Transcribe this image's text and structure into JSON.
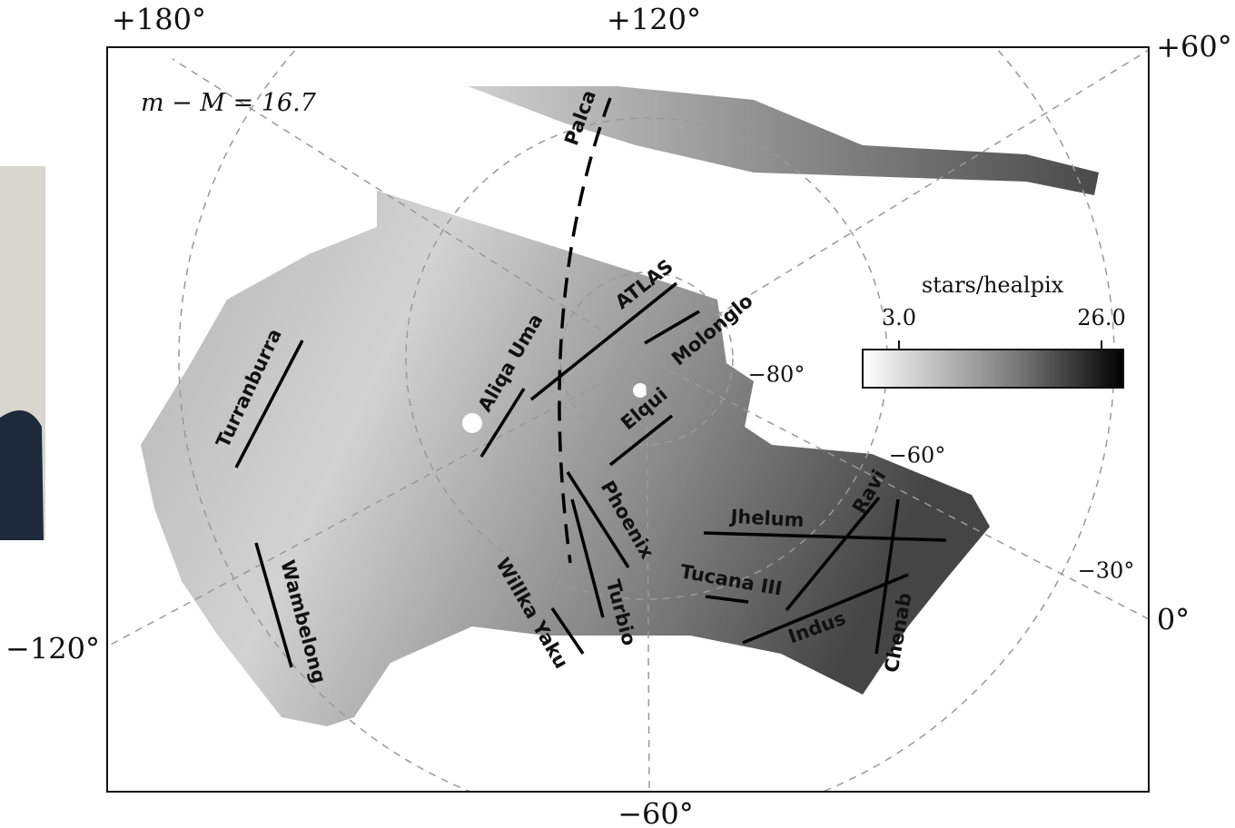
{
  "coordinate_labels": [
    "+180°",
    "+120°",
    "+60°",
    "−120°",
    "0°",
    "−60°",
    "−80°",
    "−60°",
    "−30°"
  ],
  "distance_modulus": "m − M = 16.7",
  "colorbar": {
    "label": "stars/healpix",
    "ticks": [
      {
        "value": 3,
        "label": "3.0"
      },
      {
        "value": 26,
        "label": "26.0"
      }
    ]
  },
  "streams": [
    "Palca",
    "ATLAS",
    "Molonglo",
    "Aliqa Uma",
    "Elqui",
    "Turranburra",
    "Phoenix",
    "Jhelum",
    "Ravi",
    "Tucana III",
    "Turbio",
    "Willka Yaku",
    "Indus",
    "Chenab",
    "Wambelong"
  ]
}
